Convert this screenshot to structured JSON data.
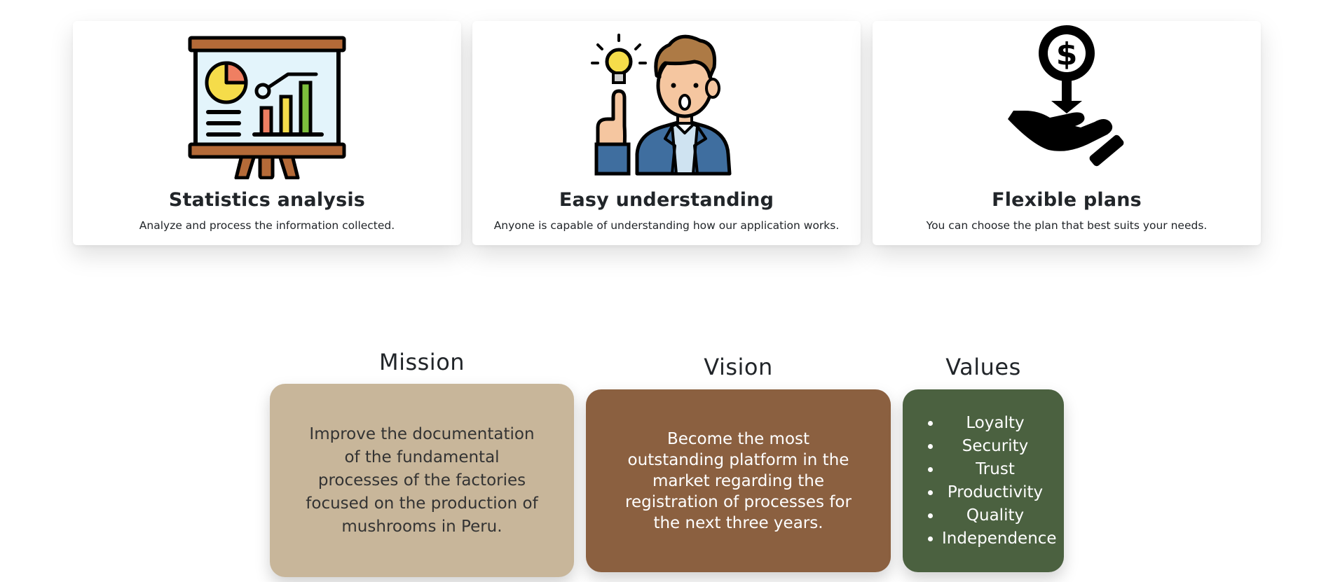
{
  "features": [
    {
      "title": "Statistics analysis",
      "description": "Analyze and process the information collected.",
      "icon": "presentation-board-icon"
    },
    {
      "title": "Easy understanding",
      "description": "Anyone is capable of understanding how our application works.",
      "icon": "idea-person-icon"
    },
    {
      "title": "Flexible plans",
      "description": "You can choose the plan that best suits your needs.",
      "icon": "hand-dollar-icon"
    }
  ],
  "mission": {
    "title": "Mission",
    "text": "Improve the documentation of the fundamental processes of the factories focused on the production of mushrooms in Peru.",
    "color": "#c8b69a"
  },
  "vision": {
    "title": "Vision",
    "text": "Become the most outstanding platform in the market regarding the registration of processes for the next three years.",
    "color": "#8b6040"
  },
  "values": {
    "title": "Values",
    "items": [
      "Loyalty",
      "Security",
      "Trust",
      "Productivity",
      "Quality",
      "Independence"
    ],
    "color": "#4b6140"
  }
}
